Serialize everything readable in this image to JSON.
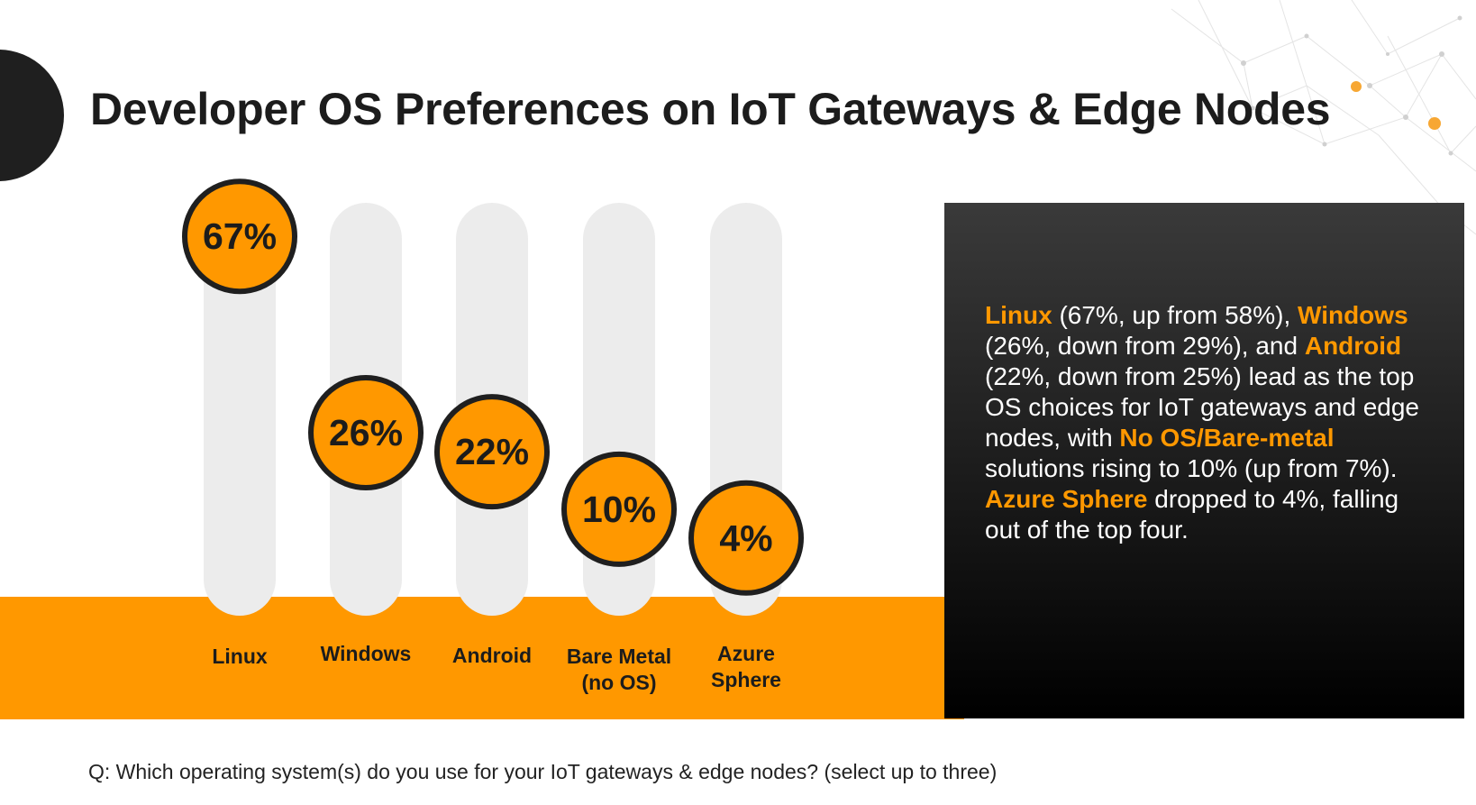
{
  "title": "Developer OS Preferences on IoT Gateways & Edge Nodes",
  "colors": {
    "accent": "#ff9800",
    "dark": "#1f1f1f",
    "track": "#ececec"
  },
  "chart_data": {
    "type": "bar",
    "categories": [
      [
        "Linux"
      ],
      [
        "Windows"
      ],
      [
        "Android"
      ],
      [
        "Bare Metal",
        "(no OS)"
      ],
      [
        "Azure",
        "Sphere"
      ]
    ],
    "values": [
      67,
      26,
      22,
      10,
      4
    ],
    "value_labels": [
      "67%",
      "26%",
      "22%",
      "10%",
      "4%"
    ],
    "title": "",
    "xlabel": "",
    "ylabel": ""
  },
  "info": {
    "segments": [
      {
        "text": "Linux",
        "highlight": true
      },
      {
        "text": " (67%, up from 58%), ",
        "highlight": false
      },
      {
        "text": "Windows",
        "highlight": true
      },
      {
        "text": " (26%, down from 29%), and ",
        "highlight": false
      },
      {
        "text": "Android",
        "highlight": true
      },
      {
        "text": " (22%, down from 25%) lead as the top OS choices for IoT gateways and edge nodes, with ",
        "highlight": false
      },
      {
        "text": "No OS/Bare-metal",
        "highlight": true
      },
      {
        "text": " solutions rising to 10% (up from 7%). ",
        "highlight": false
      },
      {
        "text": "Azure Sphere",
        "highlight": true
      },
      {
        "text": " dropped to 4%, falling out of the top four.",
        "highlight": false
      }
    ]
  },
  "question": "Q: Which operating system(s) do you use for your IoT gateways & edge nodes? (select up to three)"
}
